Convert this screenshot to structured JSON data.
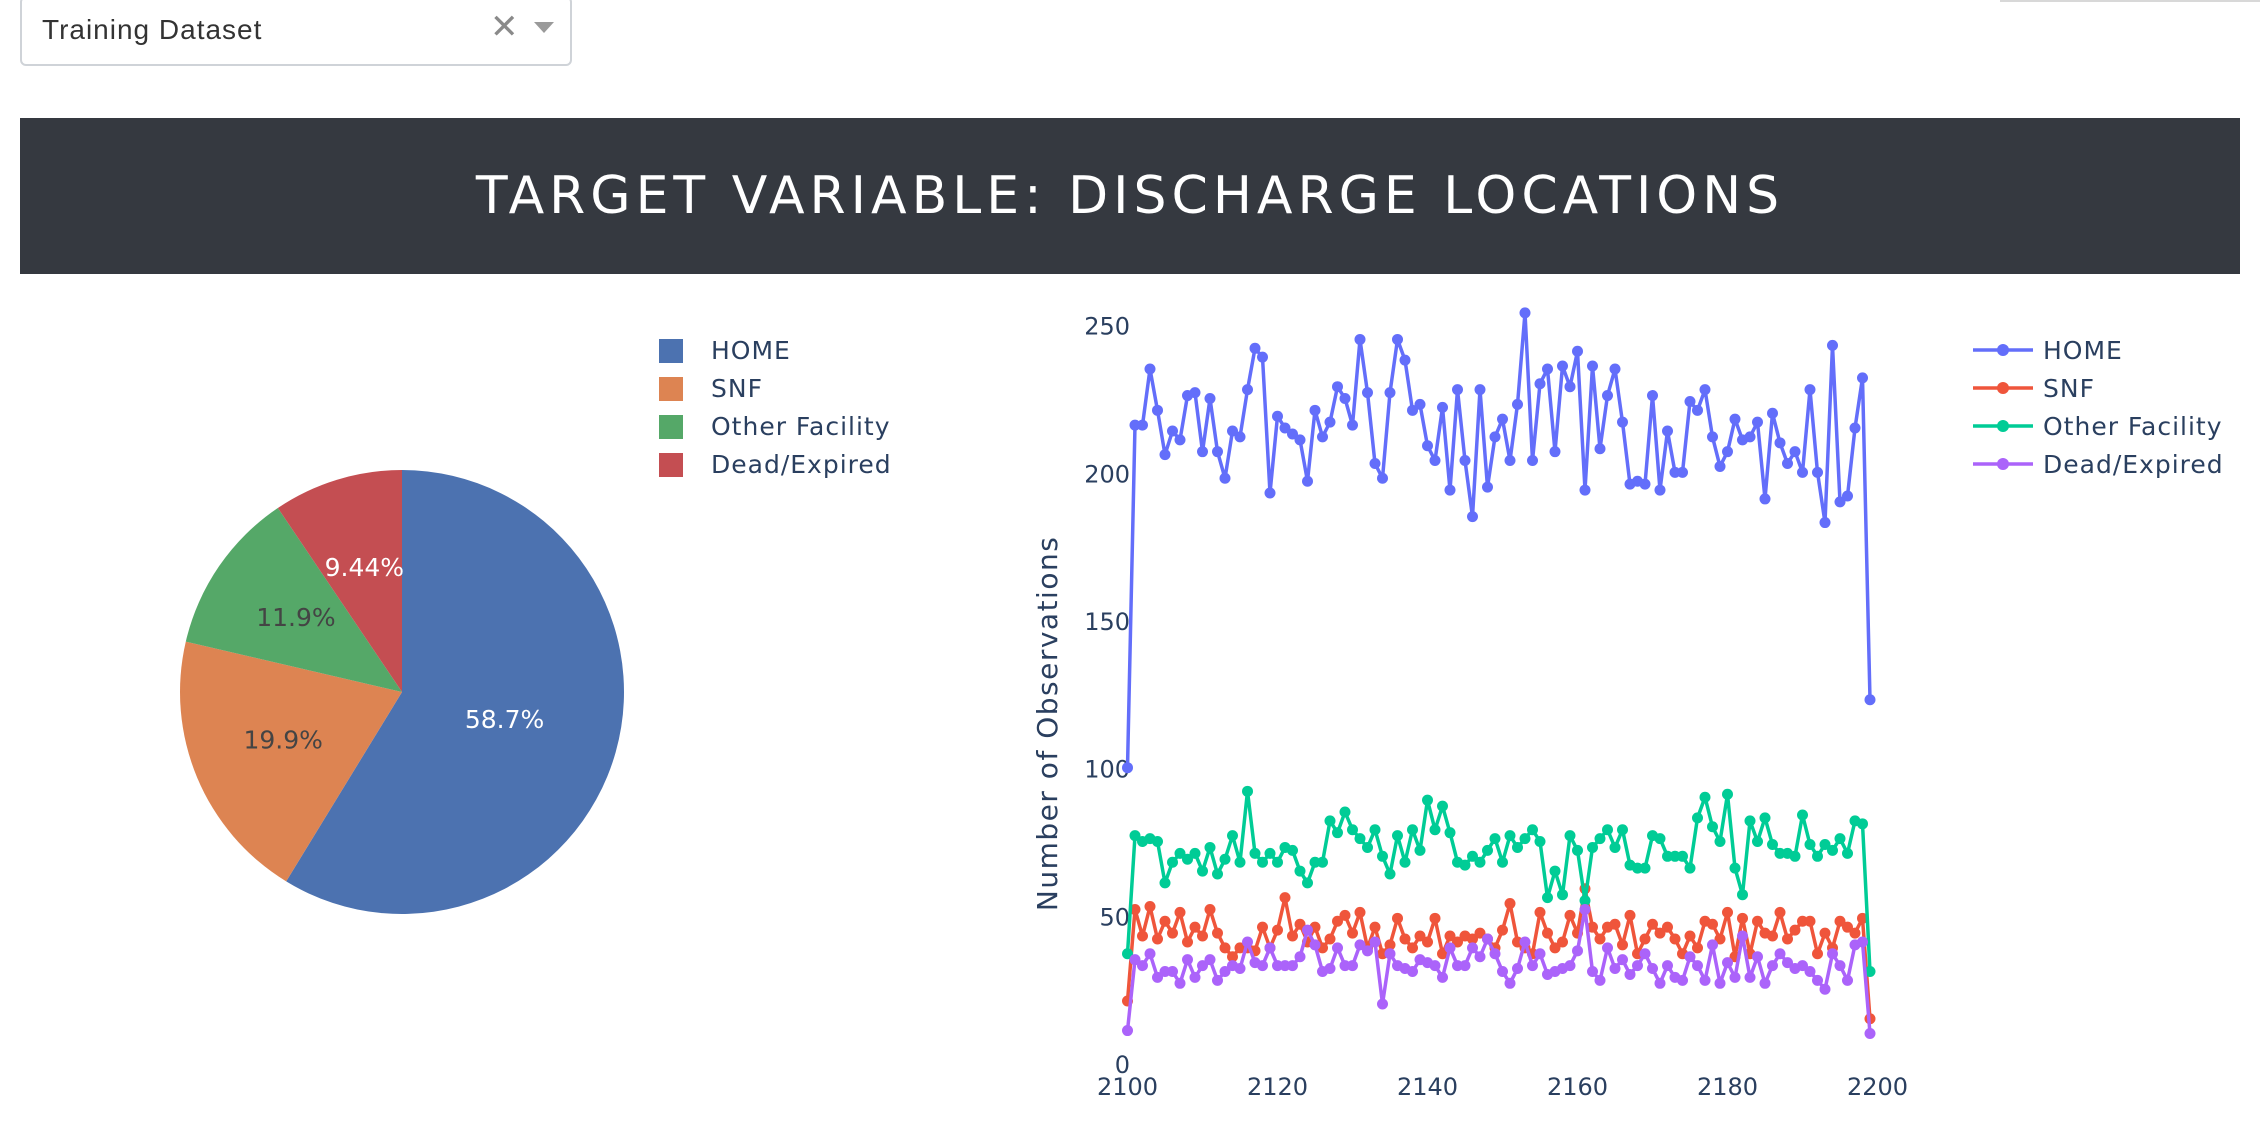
{
  "dropdown": {
    "value": "Training Dataset",
    "clear_icon": "close-icon",
    "arrow_icon": "caret-down-icon"
  },
  "banner": {
    "title": "TARGET VARIABLE: DISCHARGE LOCATIONS",
    "background": "#353940"
  },
  "chart_data": [
    {
      "type": "pie",
      "title": "",
      "legend_position": "top-right",
      "categories": [
        "HOME",
        "SNF",
        "Other Facility",
        "Dead/Expired"
      ],
      "values": [
        58.7,
        19.9,
        11.9,
        9.44
      ],
      "labels": [
        "58.7%",
        "19.9%",
        "11.9%",
        "9.44%"
      ],
      "colors": [
        "#4c72b0",
        "#dd8452",
        "#55a868",
        "#c44e52"
      ]
    },
    {
      "type": "line",
      "title": "",
      "xlabel": "",
      "ylabel": "Number of Observations",
      "xlim": [
        2097,
        2203
      ],
      "ylim": [
        0,
        258
      ],
      "x_ticks": [
        2100,
        2120,
        2140,
        2160,
        2180,
        2200
      ],
      "y_ticks": [
        0,
        50,
        100,
        150,
        200,
        250
      ],
      "grid": false,
      "legend_position": "top-right",
      "x_start": 2100,
      "series": [
        {
          "name": "HOME",
          "color": "#636efa",
          "values": [
            101,
            217,
            217,
            236,
            222,
            207,
            215,
            212,
            227,
            228,
            208,
            226,
            208,
            199,
            215,
            213,
            229,
            243,
            240,
            194,
            220,
            216,
            214,
            212,
            198,
            222,
            213,
            218,
            230,
            226,
            217,
            246,
            228,
            204,
            199,
            228,
            246,
            239,
            222,
            224,
            210,
            205,
            223,
            195,
            229,
            205,
            186,
            229,
            196,
            213,
            219,
            205,
            224,
            255,
            205,
            231,
            236,
            208,
            237,
            230,
            242,
            195,
            237,
            209,
            227,
            236,
            218,
            197,
            198,
            197,
            227,
            195,
            215,
            201,
            201,
            225,
            222,
            229,
            213,
            203,
            208,
            219,
            212,
            213,
            218,
            192,
            221,
            211,
            204,
            208,
            201,
            229,
            201,
            184,
            244,
            191,
            193,
            216,
            233,
            124
          ]
        },
        {
          "name": "SNF",
          "color": "#ef553b",
          "values": [
            22,
            53,
            44,
            54,
            43,
            49,
            45,
            52,
            42,
            47,
            44,
            53,
            45,
            40,
            37,
            40,
            40,
            39,
            47,
            40,
            46,
            57,
            44,
            48,
            42,
            47,
            40,
            43,
            49,
            51,
            45,
            52,
            40,
            47,
            38,
            41,
            50,
            43,
            40,
            44,
            42,
            50,
            38,
            44,
            42,
            44,
            43,
            45,
            43,
            40,
            46,
            55,
            42,
            40,
            38,
            52,
            45,
            40,
            42,
            51,
            45,
            60,
            47,
            43,
            47,
            48,
            41,
            51,
            38,
            43,
            48,
            45,
            47,
            43,
            38,
            44,
            40,
            49,
            48,
            43,
            52,
            37,
            50,
            38,
            49,
            45,
            44,
            52,
            43,
            46,
            49,
            49,
            38,
            45,
            40,
            49,
            47,
            45,
            50,
            16
          ]
        },
        {
          "name": "Other Facility",
          "color": "#00cc96",
          "values": [
            38,
            78,
            76,
            77,
            76,
            62,
            69,
            72,
            70,
            72,
            66,
            74,
            65,
            70,
            78,
            69,
            93,
            72,
            69,
            72,
            69,
            74,
            73,
            66,
            62,
            69,
            69,
            83,
            79,
            86,
            80,
            77,
            74,
            80,
            71,
            65,
            78,
            69,
            80,
            73,
            90,
            80,
            88,
            79,
            69,
            68,
            71,
            69,
            73,
            77,
            69,
            78,
            74,
            77,
            80,
            76,
            57,
            66,
            58,
            78,
            73,
            56,
            74,
            77,
            80,
            74,
            80,
            68,
            67,
            67,
            78,
            77,
            71,
            71,
            71,
            67,
            84,
            91,
            81,
            76,
            92,
            67,
            58,
            83,
            76,
            84,
            75,
            72,
            72,
            71,
            85,
            75,
            71,
            75,
            73,
            77,
            72,
            83,
            82,
            32
          ]
        },
        {
          "name": "Dead/Expired",
          "color": "#ab63fa",
          "values": [
            12,
            36,
            34,
            38,
            30,
            32,
            32,
            28,
            36,
            30,
            34,
            36,
            29,
            32,
            34,
            33,
            42,
            35,
            34,
            40,
            34,
            34,
            34,
            37,
            46,
            41,
            32,
            33,
            40,
            34,
            34,
            41,
            39,
            42,
            21,
            38,
            34,
            33,
            32,
            36,
            35,
            34,
            30,
            40,
            34,
            34,
            40,
            37,
            43,
            38,
            32,
            28,
            33,
            42,
            34,
            38,
            31,
            32,
            33,
            34,
            39,
            53,
            32,
            29,
            40,
            33,
            36,
            31,
            34,
            38,
            33,
            28,
            34,
            30,
            29,
            37,
            34,
            29,
            41,
            28,
            35,
            30,
            44,
            30,
            37,
            28,
            34,
            38,
            35,
            33,
            34,
            32,
            29,
            26,
            38,
            34,
            29,
            41,
            42,
            11
          ]
        }
      ]
    }
  ]
}
